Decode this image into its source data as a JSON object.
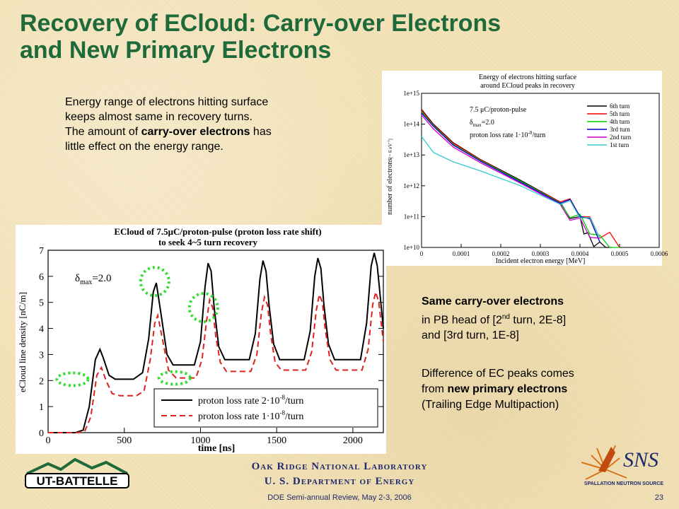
{
  "slide": {
    "title_line1": "Recovery of ECloud: Carry-over Electrons",
    "title_line2": "and New Primary Electrons",
    "para1": {
      "line1": "Energy range of electrons hitting surface",
      "line2": "keeps almost same in recovery turns.",
      "line3_pre": "The amount of ",
      "line3_bold": "carry-over electrons",
      "line3_post": " has",
      "line4": "little effect on the energy range."
    },
    "para2": {
      "line1": "Same carry-over electrons",
      "line2_pre": "in PB head of [2",
      "line2_sup": "nd",
      "line2_post": " turn, 2E-8]",
      "line3": "and [3rd turn, 1E-8]"
    },
    "para3": {
      "line1": "Difference of EC peaks comes",
      "line2_pre": "from ",
      "line2_bold": "new primary electrons",
      "line3": "(Trailing Edge Multipaction)"
    },
    "footer": {
      "lab": "Oak Ridge National Laboratory",
      "dept": "U. S. Department of Energy",
      "review": "DOE Semi-annual Review, May 2-3, 2006",
      "page": "23"
    },
    "logos": {
      "left": "UT-BATTELLE",
      "right_main": "SNS",
      "right_sub": "SPALLATION NEUTRON SOURCE"
    },
    "colors": {
      "title": "#1e6a3a",
      "footer": "#1e2a6e",
      "accent_dots": "#33dd33"
    }
  },
  "chart_data": [
    {
      "type": "line",
      "title_line1": "Energy of electrons hitting surface",
      "title_line2": "around ECloud peaks in recovery",
      "xlabel": "Incident electron energy [MeV]",
      "ylabel": "number of electrons",
      "ylabel_unit": "[~ 6 eV",
      "ylabel_unit_sup": "-1",
      "ylabel_unit_end": "]",
      "yscale": "log",
      "xlim": [
        0,
        0.0006
      ],
      "ylim": [
        10000000000.0,
        1000000000000000.0
      ],
      "xticks": [
        "0",
        "0.0001",
        "0.0002",
        "0.0003",
        "0.0004",
        "0.0005",
        "0.0006"
      ],
      "yticks": [
        "1e+10",
        "1e+11",
        "1e+12",
        "1e+13",
        "1e+14",
        "1e+15"
      ],
      "annotations": [
        "7.5 μC/proton-pulse",
        "δ",
        "max",
        "=2.0",
        "proton loss rate 1·10",
        "-8",
        "/turn"
      ],
      "legend_position": "top-right",
      "series": [
        {
          "name": "6th turn",
          "color": "#000000",
          "x": [
            0,
            3e-05,
            8e-05,
            0.00015,
            0.00025,
            0.00035,
            0.0004,
            0.00042,
            0.00045,
            0.00048
          ],
          "y": [
            300000000000000.0,
            100000000000000.0,
            25000000000000.0,
            7000000000000.0,
            1500000000000.0,
            300000000000.0,
            100000000000.0,
            30000000000.0,
            15000000000.0,
            10000000000.0
          ]
        },
        {
          "name": "5th turn",
          "color": "#ff0000",
          "x": [
            0,
            3e-05,
            8e-05,
            0.00015,
            0.00025,
            0.00035,
            0.0004,
            0.00045,
            0.0005
          ],
          "y": [
            280000000000000.0,
            95000000000000.0,
            24000000000000.0,
            6800000000000.0,
            1400000000000.0,
            300000000000.0,
            100000000000.0,
            20000000000.0,
            10000000000.0
          ]
        },
        {
          "name": "4th turn",
          "color": "#00cc00",
          "x": [
            0,
            3e-05,
            8e-05,
            0.00015,
            0.00025,
            0.00035,
            0.0004,
            0.00045,
            0.0005
          ],
          "y": [
            250000000000000.0,
            90000000000000.0,
            22000000000000.0,
            6500000000000.0,
            1400000000000.0,
            280000000000.0,
            120000000000.0,
            25000000000.0,
            10000000000.0
          ]
        },
        {
          "name": "3rd turn",
          "color": "#0000cc",
          "x": [
            0,
            3e-05,
            8e-05,
            0.00015,
            0.00025,
            0.00035,
            0.0004,
            0.00045
          ],
          "y": [
            230000000000000.0,
            85000000000000.0,
            21000000000000.0,
            6200000000000.0,
            1300000000000.0,
            270000000000.0,
            100000000000.0,
            15000000000.0
          ]
        },
        {
          "name": "2nd turn",
          "color": "#cc00cc",
          "x": [
            0,
            3e-05,
            8e-05,
            0.00015,
            0.00025,
            0.00035,
            0.0004,
            0.00045
          ],
          "y": [
            200000000000000.0,
            70000000000000.0,
            18000000000000.0,
            5500000000000.0,
            1200000000000.0,
            250000000000.0,
            90000000000.0,
            20000000000.0
          ]
        },
        {
          "name": "1st turn",
          "color": "#33cccc",
          "x": [
            0,
            3e-05,
            8e-05,
            0.00015,
            0.00025,
            0.00035,
            0.0004,
            0.00045
          ],
          "y": [
            40000000000000.0,
            12000000000000.0,
            6000000000000.0,
            3000000000000.0,
            1000000000000.0,
            250000000000.0,
            90000000000.0,
            20000000000.0
          ]
        }
      ]
    },
    {
      "type": "line",
      "title_line1": "ECloud of 7.5μC/proton-pulse (proton loss rate shift)",
      "title_line2": "to seek 4~5 turn recovery",
      "xlabel": "time [ns]",
      "ylabel": "eCloud line density [nC/m]",
      "xlim": [
        0,
        2200
      ],
      "ylim": [
        0,
        7
      ],
      "xticks": [
        "0",
        "500",
        "1000",
        "1500",
        "2000"
      ],
      "yticks": [
        "0",
        "1",
        "2",
        "3",
        "4",
        "5",
        "6",
        "7"
      ],
      "annotation": {
        "pre": "δ",
        "sub": "max",
        "post": "=2.0"
      },
      "legend_position": "bottom-right",
      "series": [
        {
          "name": "proton loss rate 2·10",
          "name_sup": "-8",
          "name_post": "/turn",
          "color": "#000000",
          "style": "solid",
          "x": [
            0,
            180,
            230,
            270,
            310,
            340,
            360,
            400,
            440,
            560,
            620,
            660,
            690,
            710,
            740,
            780,
            820,
            960,
            1000,
            1030,
            1050,
            1070,
            1090,
            1120,
            1160,
            1320,
            1360,
            1390,
            1410,
            1430,
            1450,
            1480,
            1520,
            1680,
            1720,
            1750,
            1770,
            1790,
            1810,
            1840,
            1880,
            2050,
            2090,
            2120,
            2140,
            2160,
            2200
          ],
          "y": [
            0,
            0,
            0.1,
            1.0,
            2.8,
            3.2,
            2.9,
            2.2,
            2.05,
            2.05,
            2.3,
            3.6,
            5.4,
            5.75,
            4.6,
            3.0,
            2.6,
            2.6,
            3.5,
            5.6,
            6.5,
            6.2,
            4.8,
            3.3,
            2.8,
            2.8,
            3.8,
            5.9,
            6.6,
            6.2,
            4.9,
            3.4,
            2.8,
            2.8,
            3.9,
            6.0,
            6.7,
            6.3,
            4.9,
            3.4,
            2.8,
            2.8,
            4.2,
            6.4,
            6.9,
            6.4,
            4.0
          ]
        },
        {
          "name": "proton loss rate 1·10",
          "name_sup": "-8",
          "name_post": "/turn",
          "color": "#dd2222",
          "style": "dashed",
          "x": [
            0,
            190,
            240,
            280,
            320,
            350,
            380,
            420,
            470,
            580,
            630,
            670,
            700,
            720,
            750,
            790,
            840,
            970,
            1010,
            1040,
            1060,
            1080,
            1100,
            1130,
            1170,
            1330,
            1370,
            1400,
            1420,
            1440,
            1460,
            1490,
            1530,
            1690,
            1730,
            1760,
            1780,
            1800,
            1820,
            1850,
            1890,
            2060,
            2100,
            2130,
            2150,
            2170,
            2200
          ],
          "y": [
            0,
            0,
            0.05,
            0.6,
            2.2,
            2.5,
            2.0,
            1.5,
            1.42,
            1.42,
            1.6,
            2.8,
            4.2,
            4.5,
            3.6,
            2.4,
            2.1,
            2.1,
            2.8,
            4.3,
            5.1,
            4.8,
            3.7,
            2.7,
            2.35,
            2.35,
            3.0,
            4.6,
            5.2,
            4.9,
            3.8,
            2.7,
            2.4,
            2.4,
            3.1,
            4.7,
            5.3,
            5.0,
            3.9,
            2.8,
            2.4,
            2.4,
            3.2,
            4.9,
            5.4,
            5.0,
            3.5
          ]
        }
      ],
      "highlight_ellipses": [
        {
          "cx": 160,
          "cy": 2.05
        },
        {
          "cx": 700,
          "cy": 5.8
        },
        {
          "cx": 830,
          "cy": 2.1
        },
        {
          "cx": 1020,
          "cy": 4.8
        }
      ]
    }
  ]
}
